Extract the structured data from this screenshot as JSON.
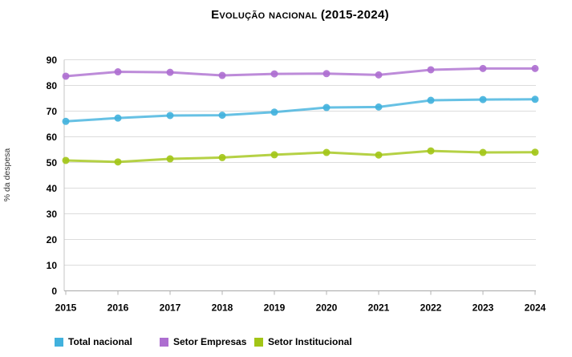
{
  "title": "Evolução nacional (2015-2024)",
  "chart_data": {
    "type": "line",
    "title": "Evolução nacional (2015-2024)",
    "xlabel": "",
    "ylabel": "% da despesa",
    "x": [
      2015,
      2016,
      2017,
      2018,
      2019,
      2020,
      2021,
      2022,
      2023,
      2024
    ],
    "series": [
      {
        "name": "Total nacional",
        "color": "#41b1dd",
        "values": [
          66.0,
          67.3,
          68.3,
          68.4,
          69.6,
          71.4,
          71.6,
          74.2,
          74.5,
          74.6
        ]
      },
      {
        "name": "Setor Empresas",
        "color": "#ad6ed0",
        "values": [
          83.6,
          85.3,
          85.1,
          83.9,
          84.5,
          84.6,
          84.1,
          86.1,
          86.6,
          86.6
        ]
      },
      {
        "name": "Setor Institucional",
        "color": "#a2c516",
        "values": [
          50.8,
          50.2,
          51.4,
          51.9,
          53.0,
          53.9,
          52.9,
          54.5,
          53.9,
          54.0
        ]
      }
    ],
    "ylim": [
      0,
      90
    ],
    "ytick_step": 10,
    "grid": true,
    "legend_position": "bottom"
  },
  "colors": {
    "grid": "#dcdcdc",
    "axis": "#b3b3b3",
    "y_axis_line": "#c4c4c4",
    "text": "#000000",
    "background": "#ffffff"
  },
  "legend": {
    "items": [
      "Total nacional",
      "Setor Empresas",
      "Setor Institucional"
    ]
  }
}
